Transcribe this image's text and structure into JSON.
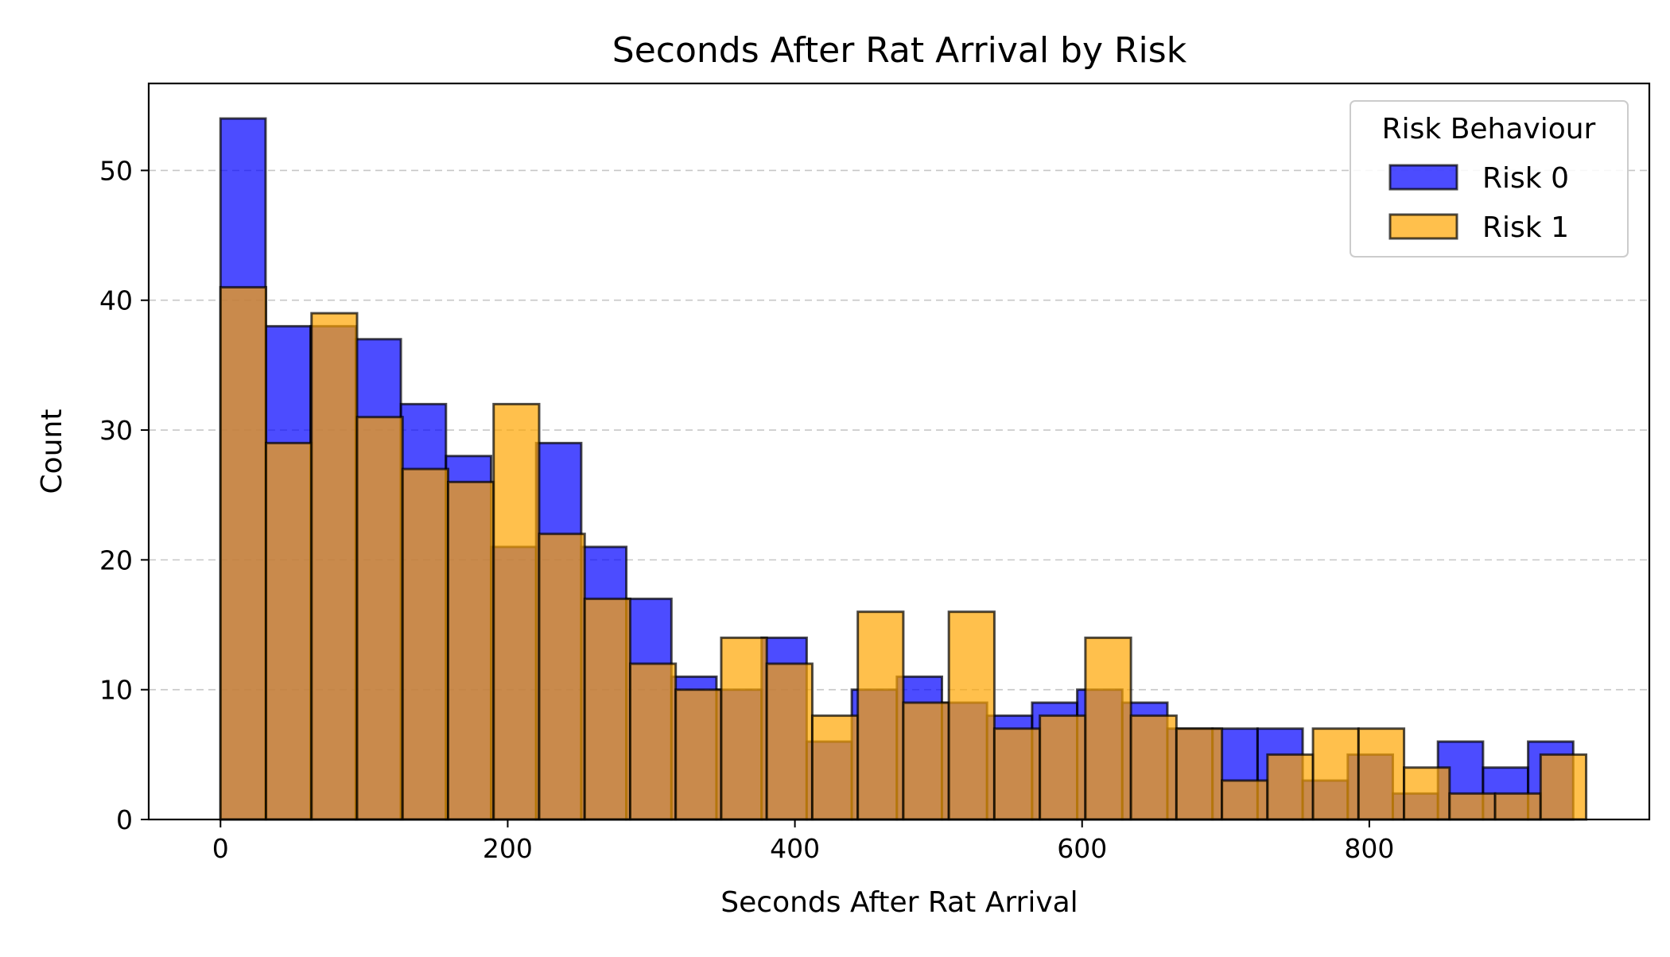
{
  "chart_data": {
    "type": "bar",
    "title": "Seconds After Rat Arrival by Risk",
    "xlabel": "Seconds After Rat Arrival",
    "ylabel": "Count",
    "xlim": [
      -50,
      995
    ],
    "ylim": [
      0,
      56.7
    ],
    "xticks": [
      0,
      200,
      400,
      600,
      800
    ],
    "yticks": [
      0,
      10,
      20,
      30,
      40,
      50
    ],
    "grid": "y dashed",
    "legend_title": "Risk Behaviour",
    "legend_position": "top-right",
    "series": [
      {
        "name": "Risk 0",
        "color": "#0000ff",
        "bin_edges": [
          0,
          31.4,
          62.8,
          94.2,
          125.6,
          157.0,
          188.4,
          219.8,
          251.2,
          282.6,
          314.0,
          345.4,
          376.8,
          408.2,
          439.6,
          471.0,
          502.4,
          533.8,
          565.2,
          596.6,
          628.0,
          659.4,
          690.8,
          722.2,
          753.6,
          785.0,
          816.4,
          847.8,
          879.2,
          910.6,
          942.0
        ],
        "values": [
          54,
          38,
          38,
          37,
          32,
          28,
          21,
          29,
          21,
          17,
          11,
          10,
          14,
          6,
          10,
          11,
          9,
          8,
          9,
          10,
          9,
          7,
          7,
          7,
          3,
          5,
          2,
          6,
          4,
          6
        ]
      },
      {
        "name": "Risk 1",
        "color": "#ffa500",
        "bin_edges": [
          0,
          31.7,
          63.4,
          95.1,
          126.8,
          158.5,
          190.2,
          221.9,
          253.6,
          285.3,
          317.0,
          348.7,
          380.4,
          412.1,
          443.8,
          475.5,
          507.2,
          538.9,
          570.6,
          602.3,
          634.0,
          665.7,
          697.4,
          729.1,
          760.8,
          792.5,
          824.2,
          855.9,
          887.6,
          919.3,
          951.0
        ],
        "values": [
          41,
          29,
          39,
          31,
          27,
          26,
          32,
          22,
          17,
          12,
          10,
          14,
          12,
          8,
          16,
          9,
          16,
          7,
          8,
          14,
          8,
          7,
          3,
          5,
          7,
          7,
          4,
          2,
          2,
          5
        ]
      }
    ]
  }
}
